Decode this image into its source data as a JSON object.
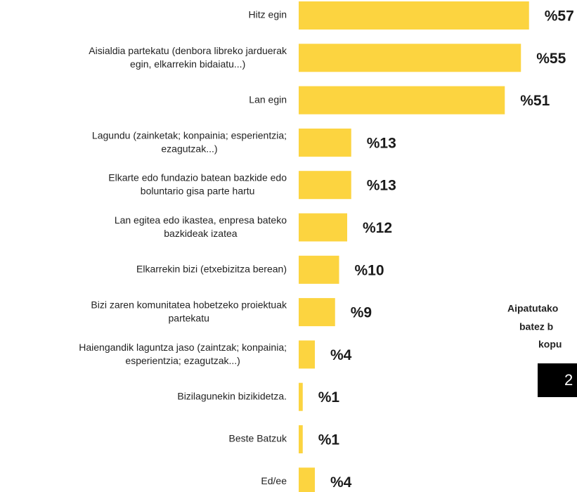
{
  "chart_data": {
    "type": "bar",
    "orientation": "horizontal",
    "color": "#fcd440",
    "categories": [
      "Hitz egin",
      "Aisialdia partekatu (denbora libreko jarduerak\negin, elkarrekin bidaiatu...)",
      "Lan egin",
      "Lagundu (zainketak; konpainia; esperientzia;\nezagutzak...)",
      "Elkarte edo fundazio batean bazkide edo\nboluntario gisa parte hartu",
      "Lan egitea edo ikastea, enpresa bateko\nbazkideak izatea",
      "Elkarrekin bizi (etxebizitza berean)",
      "Bizi zaren komunitatea hobetzeko proiektuak\npartekatu",
      "Haiengandik laguntza jaso (zaintzak; konpainia;\nesperientzia; ezagutzak...)",
      "Bizilagunekin bizikidetza.",
      "Beste Batzuk",
      "Ed/ee"
    ],
    "values": [
      57,
      55,
      51,
      13,
      13,
      12,
      10,
      9,
      4,
      1,
      1,
      4
    ],
    "value_labels": [
      "%57",
      "%55",
      "%51",
      "%13",
      "%13",
      "%12",
      "%10",
      "%9",
      "%4",
      "%1",
      "%1",
      "%4"
    ],
    "annotation": {
      "lines": [
        "Aipatutako",
        "batez b",
        "kopu"
      ],
      "value": "2"
    }
  }
}
